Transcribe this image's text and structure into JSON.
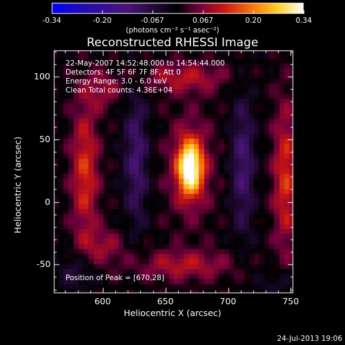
{
  "colorbar": {
    "ticks": [
      "-0.34",
      "-0.20",
      "-0.067",
      "0.067",
      "0.20",
      "0.34"
    ],
    "units": "(photons cm⁻² s⁻¹ asec⁻²)",
    "vmin": -0.34,
    "vmax": 0.34
  },
  "title": "Reconstructed RHESSI Image",
  "annotations": {
    "time": "22-May-2007 14:52:48.000 to 14:54:44.000",
    "detectors": "Detectors: 4F 5F 6F 7F 8F, Att 0",
    "energy": "Energy Range: 3.0 - 6.0 keV",
    "clean": "Clean     Total counts: 4.36E+04",
    "peak": "Position of Peak = [670,28]"
  },
  "footer": {
    "datestamp": "24-Jul-2013 19:06"
  },
  "chart_data": {
    "type": "heatmap",
    "title": "Reconstructed RHESSI Image",
    "xlabel": "Heliocentric X (arcsec)",
    "ylabel": "Heliocentric Y (arcsec)",
    "xlim": [
      561,
      752
    ],
    "ylim": [
      -73,
      121
    ],
    "xticks": [
      600,
      650,
      700,
      750
    ],
    "yticks": [
      -50,
      0,
      50,
      100
    ],
    "colormap": "hot-blue (IDL)",
    "zlim": [
      -0.34,
      0.34
    ],
    "peak": [
      670,
      28
    ],
    "features": [
      {
        "kind": "positive source",
        "center": [
          670,
          28
        ],
        "amplitude": 0.34
      },
      {
        "kind": "negative lobe",
        "center": [
          627,
          30
        ],
        "amplitude": -0.12
      },
      {
        "kind": "negative lobe",
        "center": [
          712,
          30
        ],
        "amplitude": -0.12
      },
      {
        "kind": "positive ring",
        "center": [
          585,
          20
        ],
        "amplitude": 0.14
      },
      {
        "kind": "positive ring",
        "center": [
          745,
          20
        ],
        "amplitude": 0.14
      }
    ]
  }
}
